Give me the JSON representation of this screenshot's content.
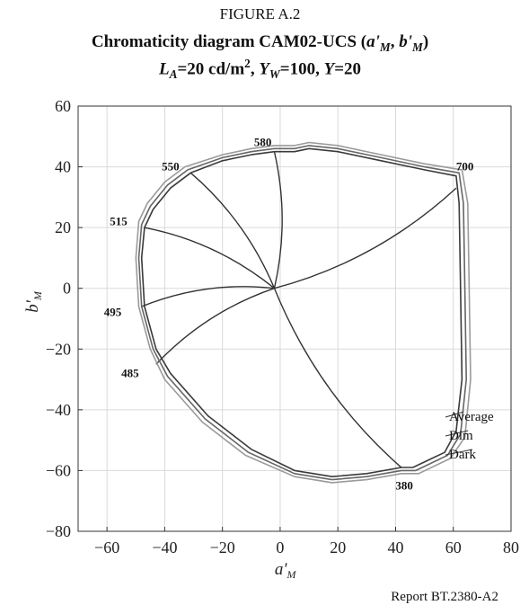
{
  "figure_label": "FIGURE A.2",
  "title": {
    "main": "Chromaticity diagram CAM02-UCS (",
    "a": "a'",
    "a_sub": "M",
    "sep": ", ",
    "b": "b'",
    "b_sub": "M",
    "close": ")"
  },
  "subtitle": {
    "la": "L",
    "la_sub": "A",
    "la_val": "=20 cd/m",
    "la_sup": "2",
    "yw_sep": ", ",
    "yw": "Y",
    "yw_sub": "W",
    "yw_val": "=100, ",
    "y": "Y",
    "y_val": "=20"
  },
  "footer": "Report BT.2380-A2",
  "chart_data": {
    "type": "line",
    "title": "Chromaticity diagram CAM02-UCS (a'M, b'M)",
    "subtitle": "LA=20 cd/m2, YW=100, Y=20",
    "xlabel": "a'",
    "xlabel_sub": "M",
    "ylabel": "b'",
    "ylabel_sub": "M",
    "xlim": [
      -70,
      80
    ],
    "ylim": [
      -80,
      60
    ],
    "xticks": [
      -60,
      -40,
      -20,
      0,
      20,
      40,
      60,
      80
    ],
    "yticks": [
      -80,
      -60,
      -40,
      -20,
      0,
      20,
      40,
      60
    ],
    "xtick_labels": [
      "−60",
      "−40",
      "−20",
      "0",
      "20",
      "40",
      "60",
      "80"
    ],
    "ytick_labels": [
      "−80",
      "−60",
      "−40",
      "−20",
      "0",
      "20",
      "40",
      "60"
    ],
    "grid": true,
    "white_point": [
      -2,
      0
    ],
    "series": [
      {
        "name": "Average",
        "color": "#3a3a3a",
        "locus": [
          [
            -31,
            38
          ],
          [
            -20,
            42
          ],
          [
            -10,
            44
          ],
          [
            -2,
            45
          ],
          [
            5,
            45
          ],
          [
            10,
            46
          ],
          [
            20,
            45
          ],
          [
            35,
            42
          ],
          [
            50,
            39
          ],
          [
            61,
            37
          ],
          [
            62,
            28
          ],
          [
            62.5,
            0
          ],
          [
            63,
            -30
          ],
          [
            61,
            -47
          ],
          [
            57,
            -54
          ],
          [
            46,
            -59
          ],
          [
            42,
            -59
          ],
          [
            30,
            -61
          ],
          [
            18,
            -62
          ],
          [
            5,
            -60
          ],
          [
            -10,
            -53
          ],
          [
            -25,
            -42
          ],
          [
            -38,
            -28
          ],
          [
            -43,
            -20
          ],
          [
            -47,
            -6
          ],
          [
            -48,
            10
          ],
          [
            -47,
            20
          ],
          [
            -44,
            26
          ],
          [
            -38,
            33
          ],
          [
            -31,
            38
          ]
        ]
      },
      {
        "name": "Dim",
        "color": "#666666",
        "locus": [
          [
            -32,
            39
          ],
          [
            -20,
            43
          ],
          [
            -10,
            45
          ],
          [
            -2,
            46
          ],
          [
            5,
            46
          ],
          [
            10,
            47
          ],
          [
            20,
            46
          ],
          [
            35,
            43
          ],
          [
            50,
            40
          ],
          [
            62,
            38
          ],
          [
            63.5,
            28
          ],
          [
            64,
            0
          ],
          [
            64.5,
            -30
          ],
          [
            62.5,
            -48
          ],
          [
            58,
            -55
          ],
          [
            47,
            -60
          ],
          [
            42,
            -60
          ],
          [
            30,
            -62
          ],
          [
            18,
            -63
          ],
          [
            5,
            -61
          ],
          [
            -11,
            -54
          ],
          [
            -26,
            -43
          ],
          [
            -39,
            -29
          ],
          [
            -44,
            -20
          ],
          [
            -48,
            -6
          ],
          [
            -49,
            10
          ],
          [
            -48,
            21
          ],
          [
            -45,
            27
          ],
          [
            -39,
            34
          ],
          [
            -32,
            39
          ]
        ]
      },
      {
        "name": "Dark",
        "color": "#9a9a9a",
        "locus": [
          [
            -33,
            40
          ],
          [
            -20,
            44
          ],
          [
            -10,
            46
          ],
          [
            -2,
            47
          ],
          [
            5,
            47
          ],
          [
            10,
            48
          ],
          [
            20,
            47
          ],
          [
            35,
            44
          ],
          [
            50,
            41
          ],
          [
            63,
            39
          ],
          [
            65,
            28
          ],
          [
            65.5,
            0
          ],
          [
            66,
            -30
          ],
          [
            64,
            -49
          ],
          [
            59,
            -56
          ],
          [
            48,
            -61
          ],
          [
            42,
            -61
          ],
          [
            30,
            -63
          ],
          [
            18,
            -64
          ],
          [
            5,
            -62
          ],
          [
            -12,
            -55
          ],
          [
            -27,
            -44
          ],
          [
            -40,
            -30
          ],
          [
            -45,
            -20
          ],
          [
            -49,
            -6
          ],
          [
            -50,
            10
          ],
          [
            -49,
            22
          ],
          [
            -46,
            28
          ],
          [
            -40,
            35
          ],
          [
            -33,
            40
          ]
        ]
      }
    ],
    "hue_lines": [
      {
        "label": "580",
        "end": [
          -2,
          45
        ],
        "label_pos": [
          -6,
          48
        ]
      },
      {
        "label": "550",
        "end": [
          -31,
          38
        ],
        "label_pos": [
          -38,
          40
        ]
      },
      {
        "label": "515",
        "end": [
          -47,
          20
        ],
        "label_pos": [
          -56,
          22
        ]
      },
      {
        "label": "495",
        "end": [
          -48,
          -6
        ],
        "label_pos": [
          -58,
          -8
        ]
      },
      {
        "label": "485",
        "end": [
          -43,
          -25
        ],
        "label_pos": [
          -52,
          -28
        ]
      },
      {
        "label": "700",
        "end": [
          61,
          33
        ],
        "label_pos": [
          64,
          40
        ]
      },
      {
        "label": "380",
        "end": [
          42,
          -59
        ],
        "label_pos": [
          43,
          -65
        ]
      }
    ],
    "legend": {
      "placement": "lower-right",
      "entries": [
        "Average",
        "Dim",
        "Dark"
      ]
    }
  }
}
